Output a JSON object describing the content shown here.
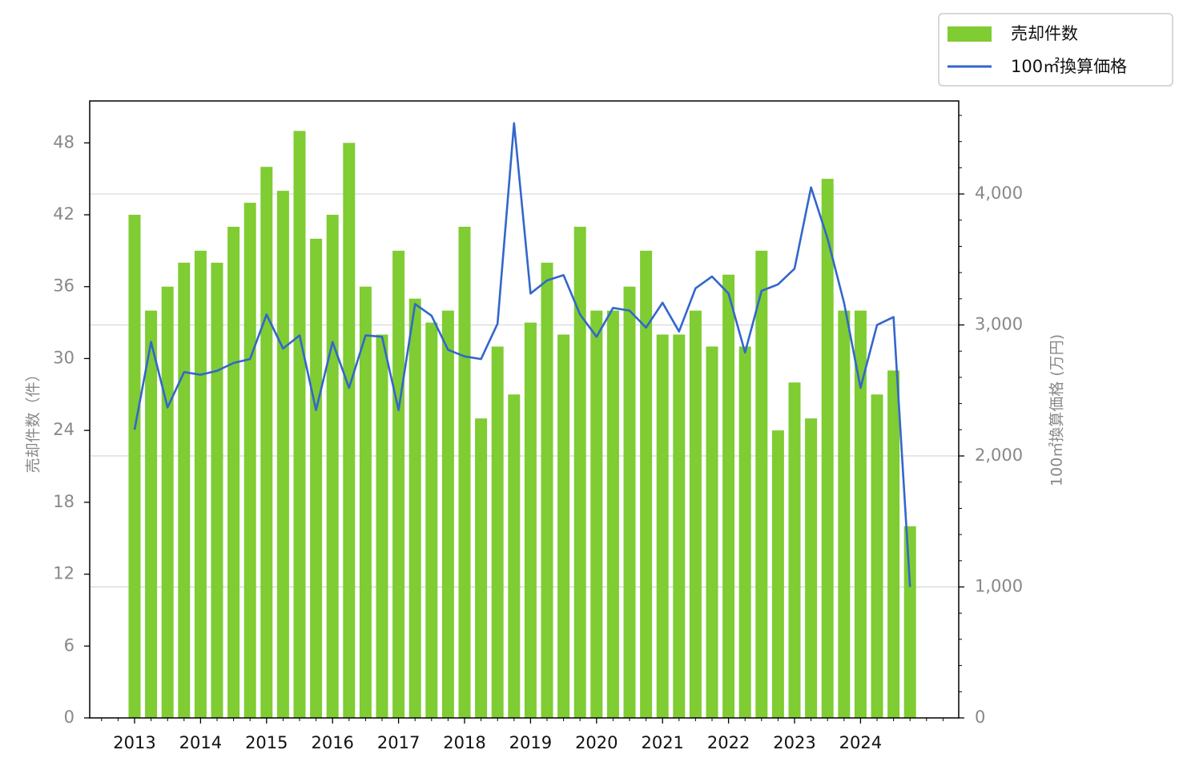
{
  "chart_data": {
    "type": "bar",
    "x_tick_labels": [
      "2013",
      "2014",
      "2015",
      "2016",
      "2017",
      "2018",
      "2019",
      "2020",
      "2021",
      "2022",
      "2023",
      "2024"
    ],
    "ylabel_left": "売却件数（件）",
    "ylabel_right": "100㎡換算価格 (万円)",
    "left_axis": {
      "ylim": [
        0,
        51.5
      ],
      "ticks": [
        0,
        6,
        12,
        18,
        24,
        30,
        36,
        42,
        48
      ]
    },
    "right_axis": {
      "ylim": [
        0,
        4710
      ],
      "ticks": [
        0,
        1000,
        2000,
        3000,
        4000
      ],
      "tick_labels": [
        "0",
        "1,000",
        "2,000",
        "3,000",
        "4,000"
      ]
    },
    "grid": "horizontal (right axis)",
    "legend_position": "top-right, outside plot",
    "series": [
      {
        "name": "売却件数",
        "type": "bar",
        "axis": "left",
        "color": "#7fcc33",
        "values": [
          42,
          34,
          36,
          38,
          39,
          38,
          41,
          43,
          46,
          44,
          49,
          40,
          42,
          48,
          36,
          32,
          39,
          35,
          33,
          34,
          41,
          25,
          31,
          27,
          33,
          38,
          32,
          41,
          34,
          34,
          36,
          39,
          32,
          32,
          34,
          31,
          37,
          31,
          39,
          24,
          28,
          25,
          45,
          34,
          34,
          27,
          29,
          16
        ]
      },
      {
        "name": "100㎡換算価格",
        "type": "line",
        "axis": "right",
        "color": "#3366cc",
        "values": [
          2200,
          2870,
          2370,
          2640,
          2620,
          2650,
          2710,
          2740,
          3080,
          2820,
          2920,
          2350,
          2870,
          2520,
          2920,
          2910,
          2350,
          3160,
          3070,
          2810,
          2760,
          2740,
          3010,
          4540,
          3240,
          3340,
          3380,
          3080,
          2910,
          3130,
          3110,
          2980,
          3170,
          2950,
          3280,
          3370,
          3240,
          2790,
          3260,
          3310,
          3430,
          4050,
          3660,
          3170,
          2520,
          3000,
          3060,
          1000
        ]
      }
    ]
  }
}
